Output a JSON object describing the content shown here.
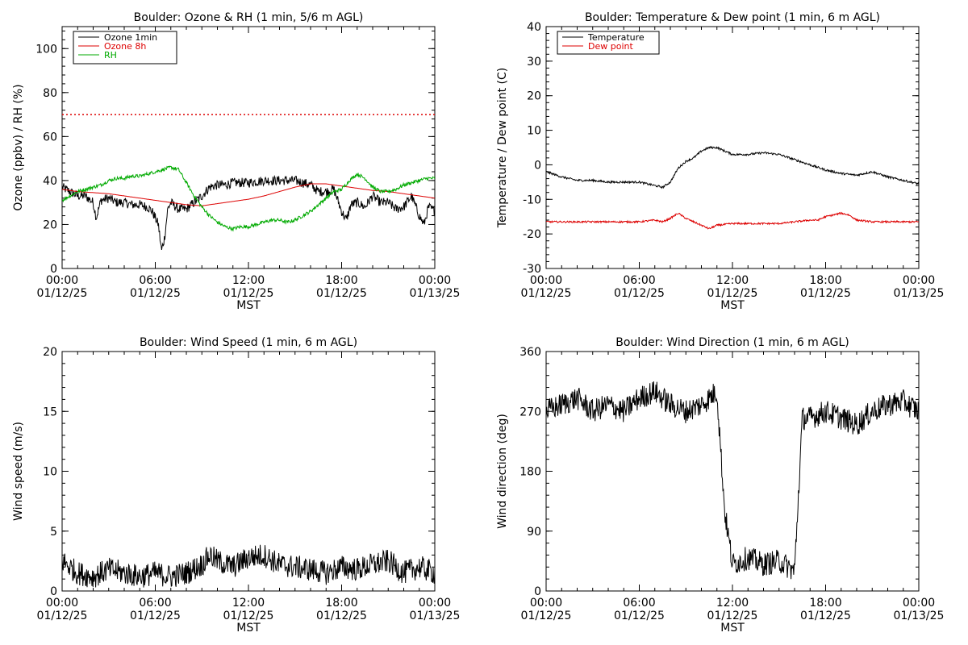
{
  "colors": {
    "black": "#000000",
    "red": "#dd0000",
    "green": "#00aa00"
  },
  "x_ticks": {
    "hours": [
      0,
      6,
      12,
      18,
      24
    ],
    "time_labels": [
      "00:00",
      "06:00",
      "12:00",
      "18:00",
      "00:00"
    ],
    "date_labels": [
      "01/12/25",
      "01/12/25",
      "01/12/25",
      "01/12/25",
      "01/13/25"
    ],
    "xlabel": "MST"
  },
  "chart_data": [
    {
      "id": "ozone_rh",
      "type": "line",
      "title": "Boulder: Ozone & RH (1 min, 5/6 m AGL)",
      "ylabel": "Ozone (ppbv) / RH (%)",
      "xlabel": "MST",
      "xlim": [
        "00:00 01/12/25",
        "00:00 01/13/25"
      ],
      "ylim": [
        0,
        110
      ],
      "yticks": [
        0,
        20,
        40,
        60,
        80,
        100
      ],
      "legend_position": "top-left",
      "reference_line": {
        "y": 70,
        "color": "#dd0000",
        "style": "dotted"
      },
      "series": [
        {
          "name": "Ozone 1min",
          "color": "#000000",
          "noise": 2.2,
          "points": [
            [
              0,
              37
            ],
            [
              0.5,
              35
            ],
            [
              1,
              33
            ],
            [
              1.5,
              33
            ],
            [
              2,
              30
            ],
            [
              2.2,
              23
            ],
            [
              2.5,
              31
            ],
            [
              3,
              32
            ],
            [
              3.5,
              30
            ],
            [
              4,
              30
            ],
            [
              4.5,
              29
            ],
            [
              5,
              29
            ],
            [
              5.5,
              28
            ],
            [
              5.8,
              26
            ],
            [
              6.2,
              20
            ],
            [
              6.4,
              8
            ],
            [
              6.6,
              14
            ],
            [
              6.8,
              27
            ],
            [
              7,
              30
            ],
            [
              7.5,
              27
            ],
            [
              8,
              27
            ],
            [
              8.5,
              30
            ],
            [
              9,
              33
            ],
            [
              9.5,
              37
            ],
            [
              10,
              38
            ],
            [
              10.5,
              38
            ],
            [
              11,
              39
            ],
            [
              12,
              39
            ],
            [
              13,
              40
            ],
            [
              14,
              40
            ],
            [
              15,
              40
            ],
            [
              16,
              38
            ],
            [
              16.5,
              35
            ],
            [
              17,
              35
            ],
            [
              17.5,
              36
            ],
            [
              18,
              26
            ],
            [
              18.3,
              22
            ],
            [
              18.6,
              29
            ],
            [
              19,
              30
            ],
            [
              19.5,
              28
            ],
            [
              20,
              33
            ],
            [
              20.5,
              30
            ],
            [
              21,
              30
            ],
            [
              21.5,
              27
            ],
            [
              22,
              28
            ],
            [
              22.5,
              33
            ],
            [
              23,
              24
            ],
            [
              23.3,
              20
            ],
            [
              23.6,
              28
            ],
            [
              24,
              26
            ]
          ]
        },
        {
          "name": "Ozone 8h",
          "color": "#dd0000",
          "noise": 0,
          "points": [
            [
              0,
              36
            ],
            [
              1,
              35
            ],
            [
              2,
              34.5
            ],
            [
              3,
              34
            ],
            [
              4,
              33
            ],
            [
              5,
              32
            ],
            [
              6,
              31
            ],
            [
              7,
              30
            ],
            [
              8,
              29
            ],
            [
              9,
              28.5
            ],
            [
              10,
              29.5
            ],
            [
              11,
              30.5
            ],
            [
              12,
              31.5
            ],
            [
              13,
              33
            ],
            [
              14,
              35
            ],
            [
              15,
              37
            ],
            [
              16,
              38.5
            ],
            [
              17,
              38.5
            ],
            [
              18,
              37.5
            ],
            [
              19,
              36.5
            ],
            [
              20,
              35.5
            ],
            [
              21,
              35
            ],
            [
              22,
              34
            ],
            [
              23,
              33
            ],
            [
              24,
              32
            ]
          ]
        },
        {
          "name": "RH",
          "color": "#00aa00",
          "noise": 0.8,
          "points": [
            [
              0,
              31
            ],
            [
              0.5,
              33
            ],
            [
              1,
              35
            ],
            [
              1.5,
              36
            ],
            [
              2,
              37
            ],
            [
              2.5,
              38
            ],
            [
              3,
              40
            ],
            [
              3.5,
              41
            ],
            [
              4,
              41
            ],
            [
              4.5,
              42
            ],
            [
              5,
              42
            ],
            [
              5.5,
              43
            ],
            [
              6,
              44
            ],
            [
              6.5,
              45
            ],
            [
              7,
              46
            ],
            [
              7.5,
              45
            ],
            [
              8,
              39
            ],
            [
              8.5,
              33
            ],
            [
              9,
              28
            ],
            [
              9.5,
              24
            ],
            [
              10,
              21
            ],
            [
              10.5,
              19
            ],
            [
              11,
              18
            ],
            [
              11.5,
              19
            ],
            [
              12,
              19
            ],
            [
              12.5,
              20
            ],
            [
              13,
              21
            ],
            [
              13.5,
              22
            ],
            [
              14,
              22
            ],
            [
              14.5,
              21
            ],
            [
              15,
              22
            ],
            [
              15.5,
              24
            ],
            [
              16,
              26
            ],
            [
              16.5,
              29
            ],
            [
              17,
              32
            ],
            [
              17.5,
              35
            ],
            [
              18,
              36
            ],
            [
              18.5,
              40
            ],
            [
              19,
              43
            ],
            [
              19.5,
              41
            ],
            [
              20,
              37
            ],
            [
              20.5,
              35
            ],
            [
              21,
              35
            ],
            [
              21.5,
              36
            ],
            [
              22,
              38
            ],
            [
              22.5,
              39
            ],
            [
              23,
              40
            ],
            [
              23.5,
              41
            ],
            [
              24,
              41
            ]
          ]
        }
      ]
    },
    {
      "id": "temp_dew",
      "type": "line",
      "title": "Boulder: Temperature & Dew point (1 min, 6 m AGL)",
      "ylabel": "Temperature / Dew point (C)",
      "xlabel": "MST",
      "xlim": [
        "00:00 01/12/25",
        "00:00 01/13/25"
      ],
      "ylim": [
        -30,
        40
      ],
      "yticks": [
        -30,
        -20,
        -10,
        0,
        10,
        20,
        30,
        40
      ],
      "legend_position": "top-left",
      "series": [
        {
          "name": "Temperature",
          "color": "#000000",
          "noise": 0.3,
          "points": [
            [
              0,
              -2
            ],
            [
              1,
              -3.5
            ],
            [
              2,
              -4.5
            ],
            [
              3,
              -4.5
            ],
            [
              4,
              -5
            ],
            [
              5,
              -5
            ],
            [
              6,
              -5
            ],
            [
              7,
              -6
            ],
            [
              7.5,
              -6.5
            ],
            [
              8,
              -5
            ],
            [
              8.5,
              -1
            ],
            [
              9,
              1
            ],
            [
              9.5,
              2
            ],
            [
              10,
              4
            ],
            [
              10.5,
              5
            ],
            [
              11,
              5
            ],
            [
              11.5,
              4
            ],
            [
              12,
              3
            ],
            [
              13,
              3
            ],
            [
              14,
              3.5
            ],
            [
              15,
              3
            ],
            [
              16,
              1.5
            ],
            [
              17,
              0
            ],
            [
              18,
              -1.5
            ],
            [
              19,
              -2.5
            ],
            [
              20,
              -3
            ],
            [
              21,
              -2
            ],
            [
              22,
              -3.5
            ],
            [
              23,
              -4.5
            ],
            [
              24,
              -5.5
            ]
          ]
        },
        {
          "name": "Dew point",
          "color": "#dd0000",
          "noise": 0.25,
          "points": [
            [
              0,
              -16.5
            ],
            [
              1,
              -16.5
            ],
            [
              2,
              -16.5
            ],
            [
              3,
              -16.5
            ],
            [
              4,
              -16.5
            ],
            [
              5,
              -16.5
            ],
            [
              6,
              -16.5
            ],
            [
              7,
              -16
            ],
            [
              7.5,
              -16.5
            ],
            [
              8,
              -15.5
            ],
            [
              8.5,
              -14
            ],
            [
              9,
              -15.5
            ],
            [
              9.5,
              -16.5
            ],
            [
              10,
              -17.5
            ],
            [
              10.5,
              -18.5
            ],
            [
              11,
              -17.5
            ],
            [
              12,
              -17
            ],
            [
              13,
              -17
            ],
            [
              14,
              -17
            ],
            [
              15,
              -17
            ],
            [
              16,
              -16.5
            ],
            [
              17,
              -16
            ],
            [
              17.5,
              -16
            ],
            [
              18,
              -15
            ],
            [
              18.5,
              -14.5
            ],
            [
              19,
              -14
            ],
            [
              19.5,
              -14.5
            ],
            [
              20,
              -16
            ],
            [
              21,
              -16.5
            ],
            [
              22,
              -16.5
            ],
            [
              23,
              -16.5
            ],
            [
              24,
              -16.5
            ]
          ]
        }
      ]
    },
    {
      "id": "wind_speed",
      "type": "line",
      "title": "Boulder: Wind Speed (1 min, 6 m AGL)",
      "ylabel": "Wind speed (m/s)",
      "xlabel": "MST",
      "xlim": [
        "00:00 01/12/25",
        "00:00 01/13/25"
      ],
      "ylim": [
        0,
        20
      ],
      "yticks": [
        0,
        5,
        10,
        15,
        20
      ],
      "series": [
        {
          "name": "",
          "color": "#000000",
          "noise": 1.0,
          "min": 0,
          "points": [
            [
              0,
              2.5
            ],
            [
              1,
              1.5
            ],
            [
              2,
              1.2
            ],
            [
              3,
              1.8
            ],
            [
              4,
              1.5
            ],
            [
              5,
              1.2
            ],
            [
              6,
              1.5
            ],
            [
              7,
              1.2
            ],
            [
              8,
              1.5
            ],
            [
              9,
              2.2
            ],
            [
              9.5,
              3
            ],
            [
              10,
              2.5
            ],
            [
              11,
              2
            ],
            [
              12,
              2.8
            ],
            [
              13,
              3
            ],
            [
              14,
              2.2
            ],
            [
              15,
              2
            ],
            [
              16,
              1.8
            ],
            [
              17,
              1.5
            ],
            [
              18,
              2
            ],
            [
              19,
              1.8
            ],
            [
              20,
              2.2
            ],
            [
              21,
              2.5
            ],
            [
              22,
              1.5
            ],
            [
              23,
              2
            ],
            [
              24,
              1.5
            ]
          ]
        }
      ]
    },
    {
      "id": "wind_dir",
      "type": "line",
      "title": "Boulder: Wind Direction (1 min, 6 m AGL)",
      "ylabel": "Wind direction (deg)",
      "xlabel": "MST",
      "xlim": [
        "00:00 01/12/25",
        "00:00 01/13/25"
      ],
      "ylim": [
        0,
        360
      ],
      "yticks": [
        0,
        90,
        180,
        270,
        360
      ],
      "series": [
        {
          "name": "",
          "color": "#000000",
          "noise": 18,
          "min": 0,
          "max": 360,
          "points": [
            [
              0,
              270
            ],
            [
              1,
              280
            ],
            [
              2,
              290
            ],
            [
              3,
              270
            ],
            [
              4,
              280
            ],
            [
              5,
              270
            ],
            [
              6,
              290
            ],
            [
              7,
              300
            ],
            [
              8,
              280
            ],
            [
              9,
              270
            ],
            [
              10,
              280
            ],
            [
              11,
              300
            ],
            [
              11.5,
              120
            ],
            [
              12,
              40
            ],
            [
              13,
              50
            ],
            [
              14,
              40
            ],
            [
              15,
              45
            ],
            [
              16,
              30
            ],
            [
              16.5,
              260
            ],
            [
              17,
              260
            ],
            [
              18,
              270
            ],
            [
              19,
              260
            ],
            [
              20,
              250
            ],
            [
              21,
              270
            ],
            [
              22,
              280
            ],
            [
              23,
              285
            ],
            [
              24,
              270
            ]
          ]
        }
      ]
    }
  ]
}
